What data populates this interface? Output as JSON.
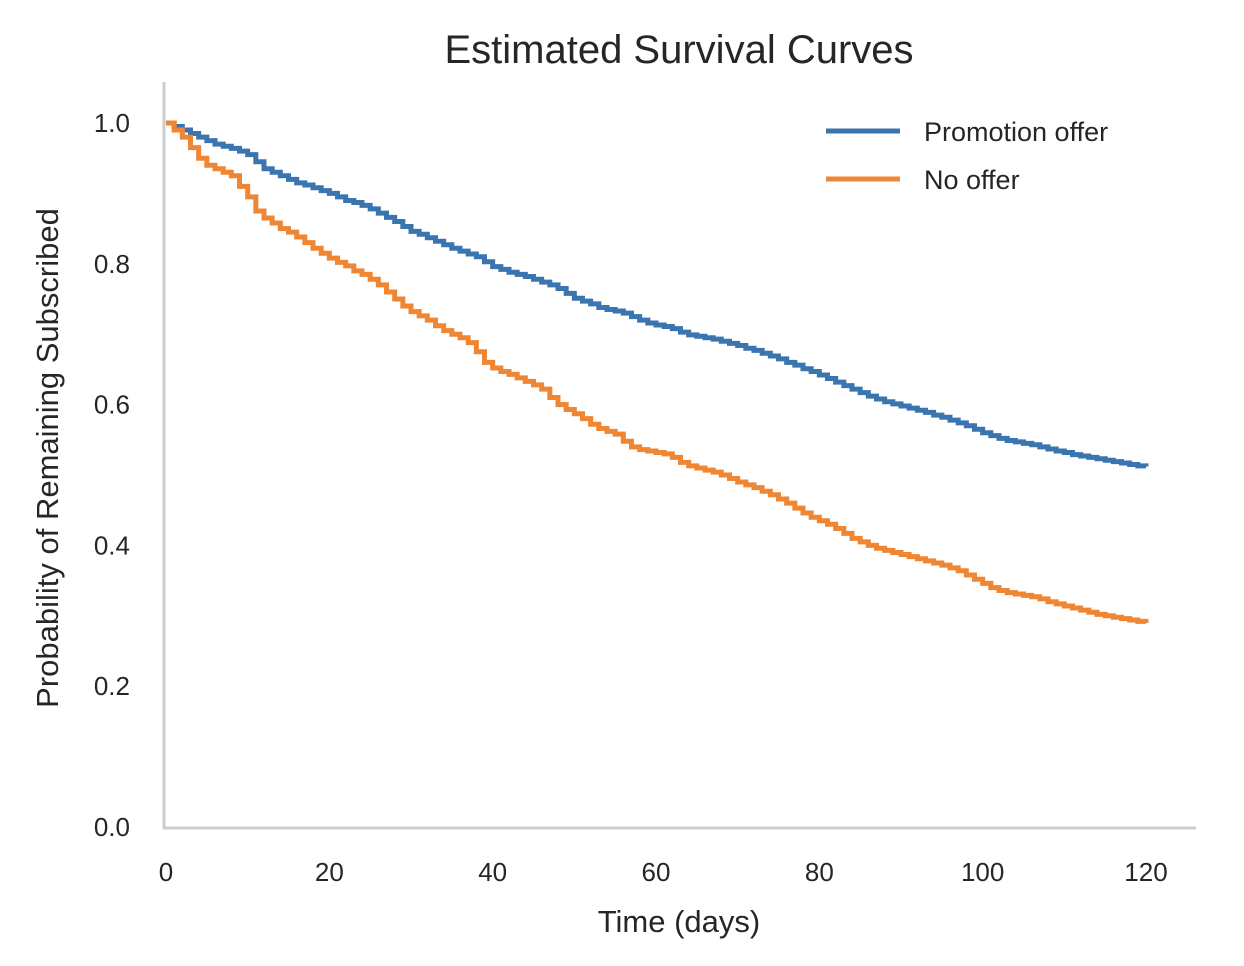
{
  "chart_data": {
    "type": "line",
    "title": "Estimated Survival Curves",
    "xlabel": "Time (days)",
    "ylabel": "Probability of Remaining Subscribed",
    "xlim": [
      0,
      120
    ],
    "ylim": [
      0,
      1.0
    ],
    "x_ticks": [
      0,
      20,
      40,
      60,
      80,
      100,
      120
    ],
    "x_tick_labels": [
      "0",
      "20",
      "40",
      "60",
      "80",
      "100",
      "120"
    ],
    "y_ticks": [
      0,
      0.2,
      0.4,
      0.6,
      0.8,
      1.0
    ],
    "y_tick_labels": [
      "0.0",
      "0.2",
      "0.4",
      "0.6",
      "0.8",
      "1.0"
    ],
    "grid": false,
    "legend_position": "top-right",
    "step": true,
    "series": [
      {
        "name": "Promotion offer",
        "color": "#3a75b0",
        "x": [
          0,
          1,
          2,
          3,
          4,
          5,
          6,
          7,
          8,
          9,
          10,
          11,
          12,
          13,
          14,
          15,
          16,
          17,
          18,
          19,
          20,
          21,
          22,
          23,
          24,
          25,
          26,
          27,
          28,
          29,
          30,
          31,
          32,
          33,
          34,
          35,
          36,
          37,
          38,
          39,
          40,
          41,
          42,
          43,
          44,
          45,
          46,
          47,
          48,
          49,
          50,
          51,
          52,
          53,
          54,
          55,
          56,
          57,
          58,
          59,
          60,
          61,
          62,
          63,
          64,
          65,
          66,
          67,
          68,
          69,
          70,
          71,
          72,
          73,
          74,
          75,
          76,
          77,
          78,
          79,
          80,
          81,
          82,
          83,
          84,
          85,
          86,
          87,
          88,
          89,
          90,
          91,
          92,
          93,
          94,
          95,
          96,
          97,
          98,
          99,
          100,
          101,
          102,
          103,
          104,
          105,
          106,
          107,
          108,
          109,
          110,
          111,
          112,
          113,
          114,
          115,
          116,
          117,
          118,
          119,
          120
        ],
        "y": [
          1.0,
          0.995,
          0.99,
          0.985,
          0.98,
          0.975,
          0.97,
          0.967,
          0.964,
          0.96,
          0.955,
          0.945,
          0.935,
          0.93,
          0.925,
          0.92,
          0.915,
          0.912,
          0.908,
          0.904,
          0.9,
          0.895,
          0.89,
          0.887,
          0.883,
          0.878,
          0.872,
          0.866,
          0.86,
          0.853,
          0.846,
          0.842,
          0.837,
          0.832,
          0.827,
          0.822,
          0.818,
          0.814,
          0.81,
          0.803,
          0.796,
          0.792,
          0.788,
          0.785,
          0.782,
          0.778,
          0.774,
          0.77,
          0.765,
          0.758,
          0.751,
          0.747,
          0.743,
          0.738,
          0.735,
          0.733,
          0.73,
          0.725,
          0.72,
          0.716,
          0.713,
          0.711,
          0.708,
          0.703,
          0.699,
          0.697,
          0.695,
          0.693,
          0.69,
          0.687,
          0.684,
          0.68,
          0.677,
          0.673,
          0.669,
          0.665,
          0.66,
          0.656,
          0.651,
          0.647,
          0.642,
          0.637,
          0.632,
          0.627,
          0.622,
          0.617,
          0.612,
          0.608,
          0.604,
          0.601,
          0.598,
          0.595,
          0.592,
          0.589,
          0.585,
          0.582,
          0.578,
          0.574,
          0.57,
          0.565,
          0.56,
          0.556,
          0.552,
          0.549,
          0.547,
          0.545,
          0.543,
          0.54,
          0.537,
          0.534,
          0.532,
          0.529,
          0.527,
          0.525,
          0.523,
          0.521,
          0.519,
          0.517,
          0.515,
          0.513,
          0.512
        ]
      },
      {
        "name": "No offer",
        "color": "#ef8634",
        "x": [
          0,
          1,
          2,
          3,
          4,
          5,
          6,
          7,
          8,
          9,
          10,
          11,
          12,
          13,
          14,
          15,
          16,
          17,
          18,
          19,
          20,
          21,
          22,
          23,
          24,
          25,
          26,
          27,
          28,
          29,
          30,
          31,
          32,
          33,
          34,
          35,
          36,
          37,
          38,
          39,
          40,
          41,
          42,
          43,
          44,
          45,
          46,
          47,
          48,
          49,
          50,
          51,
          52,
          53,
          54,
          55,
          56,
          57,
          58,
          59,
          60,
          61,
          62,
          63,
          64,
          65,
          66,
          67,
          68,
          69,
          70,
          71,
          72,
          73,
          74,
          75,
          76,
          77,
          78,
          79,
          80,
          81,
          82,
          83,
          84,
          85,
          86,
          87,
          88,
          89,
          90,
          91,
          92,
          93,
          94,
          95,
          96,
          97,
          98,
          99,
          100,
          101,
          102,
          103,
          104,
          105,
          106,
          107,
          108,
          109,
          110,
          111,
          112,
          113,
          114,
          115,
          116,
          117,
          118,
          119,
          120
        ],
        "y": [
          1.0,
          0.99,
          0.98,
          0.965,
          0.95,
          0.94,
          0.935,
          0.93,
          0.925,
          0.91,
          0.895,
          0.875,
          0.865,
          0.858,
          0.85,
          0.845,
          0.838,
          0.83,
          0.822,
          0.815,
          0.808,
          0.802,
          0.797,
          0.79,
          0.785,
          0.778,
          0.77,
          0.76,
          0.75,
          0.74,
          0.732,
          0.726,
          0.72,
          0.712,
          0.705,
          0.7,
          0.695,
          0.688,
          0.675,
          0.66,
          0.652,
          0.647,
          0.643,
          0.638,
          0.633,
          0.628,
          0.622,
          0.61,
          0.6,
          0.593,
          0.587,
          0.58,
          0.572,
          0.566,
          0.562,
          0.558,
          0.548,
          0.54,
          0.536,
          0.534,
          0.532,
          0.53,
          0.525,
          0.518,
          0.513,
          0.51,
          0.507,
          0.504,
          0.5,
          0.495,
          0.49,
          0.486,
          0.482,
          0.477,
          0.472,
          0.466,
          0.46,
          0.453,
          0.446,
          0.44,
          0.435,
          0.43,
          0.424,
          0.417,
          0.41,
          0.405,
          0.4,
          0.396,
          0.393,
          0.39,
          0.387,
          0.384,
          0.381,
          0.378,
          0.375,
          0.372,
          0.368,
          0.364,
          0.358,
          0.352,
          0.346,
          0.34,
          0.336,
          0.333,
          0.331,
          0.329,
          0.327,
          0.324,
          0.32,
          0.317,
          0.314,
          0.311,
          0.308,
          0.305,
          0.302,
          0.3,
          0.298,
          0.296,
          0.294,
          0.292,
          0.29
        ]
      }
    ]
  }
}
